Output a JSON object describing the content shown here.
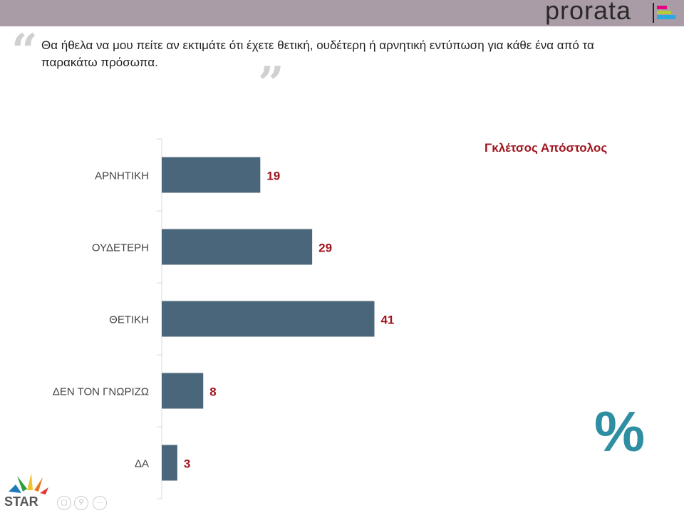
{
  "header": {
    "brand": "prorata",
    "brand_colors": [
      "#e6007e",
      "#b5cc3a",
      "#29a9e0"
    ]
  },
  "question": "Θα ήθελα να μου πείτε αν εκτιμάτε ότι έχετε θετική, ουδέτερη ή αρνητική εντύπωση για κάθε ένα από τα παρακάτω πρόσωπα.",
  "person": "Γκλέτσος Απόστολος",
  "percent_symbol": "%",
  "footer": {
    "logo": "STAR ΚΕΝΤΡΙΚΗΣ ΕΛΛΑΔΑΣ"
  },
  "chart_data": {
    "type": "bar",
    "orientation": "horizontal",
    "categories": [
      "ΑΡΝΗΤΙΚΗ",
      "ΟΥΔΕΤΕΡΗ",
      "ΘΕΤΙΚΗ",
      "ΔΕΝ ΤΟΝ ΓΝΩΡΙΖΩ",
      "ΔΑ"
    ],
    "values": [
      19,
      29,
      41,
      8,
      3
    ],
    "bar_color": "#4a667a",
    "label_color": "#a0141e",
    "title": "",
    "xlabel": "",
    "ylabel": "",
    "grid": false
  }
}
